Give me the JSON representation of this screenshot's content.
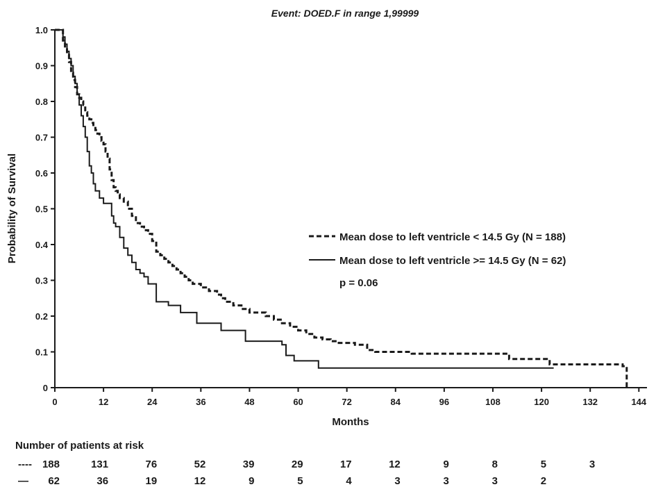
{
  "chart_data": {
    "type": "line",
    "title": "Event: DOED.F in range 1,99999",
    "xlabel": "Months",
    "ylabel": "Probability of Survival",
    "xlim": [
      0,
      146
    ],
    "ylim": [
      0,
      1.0
    ],
    "x_ticks": [
      0,
      12,
      24,
      36,
      48,
      60,
      72,
      84,
      96,
      108,
      120,
      132,
      144
    ],
    "y_ticks": [
      0,
      0.1,
      0.2,
      0.3,
      0.4,
      0.5,
      0.6,
      0.7,
      0.8,
      0.9,
      1.0
    ],
    "y_tick_labels": [
      "0",
      "0.1",
      "0.2",
      "0.3",
      "0.4",
      "0.5",
      "0.6",
      "0.7",
      "0.8",
      "0.9",
      "1.0"
    ],
    "step": true,
    "series": [
      {
        "name": "Mean dose to left ventricle < 14.5 Gy (N = 188)",
        "style": "dashed",
        "x": [
          0,
          2,
          2.5,
          3,
          3.5,
          4,
          4.5,
          5,
          5.5,
          6,
          6.5,
          7,
          7.5,
          8,
          8.5,
          9,
          9.5,
          10,
          10.5,
          11,
          11.5,
          12,
          12.5,
          13,
          13.5,
          14,
          14.5,
          15,
          15.5,
          16,
          17,
          18,
          19,
          20,
          21,
          22,
          23,
          24,
          25,
          26,
          27,
          28,
          29,
          30,
          31,
          32,
          33,
          34,
          36,
          38,
          40,
          41,
          42,
          44,
          46,
          48,
          50,
          52,
          54,
          56,
          58,
          60,
          62,
          64,
          66,
          68,
          70,
          74,
          77,
          79,
          88,
          112,
          122,
          140,
          141
        ],
        "y": [
          1.0,
          0.97,
          0.95,
          0.93,
          0.91,
          0.88,
          0.86,
          0.84,
          0.82,
          0.81,
          0.8,
          0.79,
          0.77,
          0.76,
          0.75,
          0.74,
          0.73,
          0.72,
          0.71,
          0.7,
          0.69,
          0.68,
          0.66,
          0.64,
          0.61,
          0.58,
          0.56,
          0.55,
          0.54,
          0.53,
          0.52,
          0.5,
          0.48,
          0.46,
          0.45,
          0.44,
          0.43,
          0.41,
          0.38,
          0.37,
          0.36,
          0.35,
          0.34,
          0.33,
          0.32,
          0.31,
          0.3,
          0.29,
          0.28,
          0.27,
          0.26,
          0.25,
          0.24,
          0.23,
          0.22,
          0.21,
          0.21,
          0.2,
          0.19,
          0.18,
          0.17,
          0.16,
          0.15,
          0.14,
          0.135,
          0.13,
          0.125,
          0.12,
          0.105,
          0.1,
          0.095,
          0.08,
          0.065,
          0.06,
          0.0
        ]
      },
      {
        "name": "Mean dose to left ventricle >= 14.5 Gy (N = 62)",
        "style": "solid",
        "x": [
          0,
          2,
          2.5,
          3,
          3.5,
          4,
          4.5,
          5,
          5.5,
          6,
          6.5,
          7,
          7.5,
          8,
          8.5,
          9,
          9.5,
          10,
          11,
          12,
          14,
          14.5,
          15,
          16,
          17,
          18,
          19,
          20,
          21,
          22,
          23,
          24,
          25,
          26,
          28,
          31,
          35,
          41,
          47,
          53,
          56,
          57,
          59,
          65,
          123
        ],
        "y": [
          1.0,
          0.98,
          0.96,
          0.94,
          0.92,
          0.9,
          0.87,
          0.85,
          0.82,
          0.79,
          0.76,
          0.73,
          0.7,
          0.66,
          0.62,
          0.6,
          0.57,
          0.55,
          0.53,
          0.515,
          0.48,
          0.46,
          0.45,
          0.42,
          0.39,
          0.37,
          0.35,
          0.33,
          0.32,
          0.31,
          0.29,
          0.29,
          0.24,
          0.24,
          0.23,
          0.21,
          0.18,
          0.16,
          0.13,
          0.13,
          0.12,
          0.09,
          0.075,
          0.055,
          0.055
        ]
      }
    ],
    "legend": {
      "position": "right",
      "entries": [
        "Mean dose to left ventricle < 14.5 Gy (N = 188)",
        "Mean dose to left ventricle >= 14.5 Gy (N = 62)"
      ],
      "annotation": "p = 0.06"
    },
    "grid": false,
    "at_risk": {
      "title": "Number of patients at risk",
      "rows": [
        {
          "symbol": "----",
          "values": [
            "188",
            "131",
            "76",
            "52",
            "39",
            "29",
            "17",
            "12",
            "9",
            "8",
            "5",
            "3"
          ]
        },
        {
          "symbol": "—",
          "values": [
            "62",
            "36",
            "19",
            "12",
            "9",
            "5",
            "4",
            "3",
            "3",
            "3",
            "2"
          ]
        }
      ]
    }
  }
}
